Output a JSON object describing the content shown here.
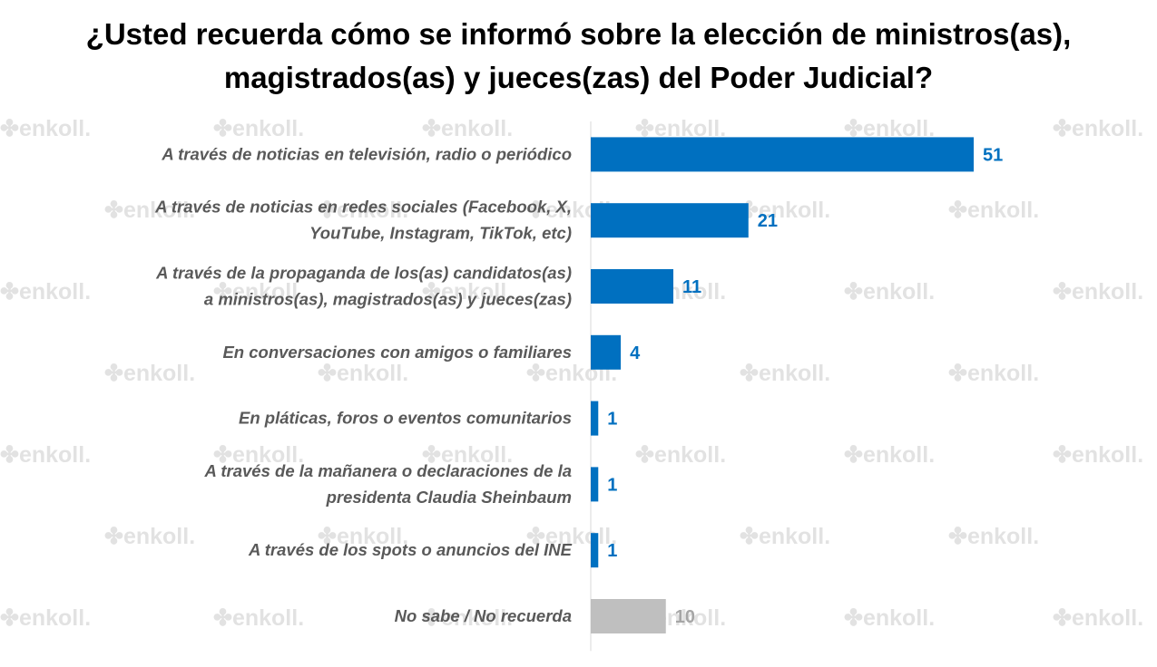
{
  "chart_data": {
    "type": "bar",
    "orientation": "horizontal",
    "title": "¿Usted recuerda cómo se informó sobre la elección de ministros(as), magistrados(as) y jueces(zas) del Poder Judicial?",
    "title_lines": [
      "¿Usted recuerda cómo se informó sobre la elección de ministros(as),",
      "magistrados(as) y jueces(zas) del Poder Judicial?"
    ],
    "categories": [
      [
        "A través de noticias en televisión, radio o periódico"
      ],
      [
        "A través de noticias en redes sociales (Facebook, X,",
        "YouTube, Instagram, TikTok, etc)"
      ],
      [
        "A través de la propaganda de los(as) candidatos(as)",
        "a ministros(as), magistrados(as) y jueces(zas)"
      ],
      [
        "En conversaciones con amigos o familiares"
      ],
      [
        "En pláticas, foros o eventos comunitarios"
      ],
      [
        "A través de la mañanera o declaraciones de la",
        "presidenta Claudia Sheinbaum"
      ],
      [
        "A través de los spots o anuncios del INE"
      ],
      [
        "No sabe / No recuerda"
      ]
    ],
    "values": [
      51,
      21,
      11,
      4,
      1,
      1,
      1,
      10
    ],
    "bar_colors": [
      "#0070c0",
      "#0070c0",
      "#0070c0",
      "#0070c0",
      "#0070c0",
      "#0070c0",
      "#0070c0",
      "#bfbfbf"
    ],
    "label_colors": [
      "#0070c0",
      "#0070c0",
      "#0070c0",
      "#0070c0",
      "#0070c0",
      "#0070c0",
      "#0070c0",
      "#a6a6a6"
    ],
    "xlim": [
      0,
      51
    ],
    "grid": false,
    "legend": "none"
  },
  "watermark": {
    "text": "enkoll."
  }
}
